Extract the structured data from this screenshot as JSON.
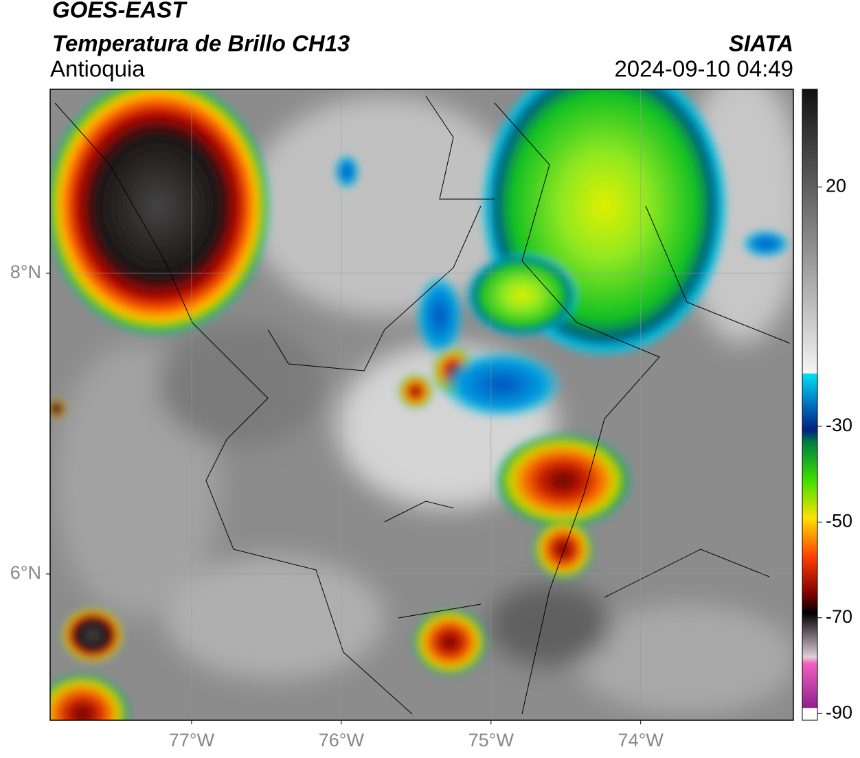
{
  "header": {
    "satellite": "GOES-EAST",
    "product": "Temperatura de Brillo CH13",
    "region": "Antioquia",
    "source": "SIATA",
    "datetime": "2024-09-10 04:49"
  },
  "map": {
    "lonlim": [
      -77.945,
      -72.98
    ],
    "latlim": [
      5.027,
      9.224
    ],
    "lon_ticks": [
      {
        "value": -77,
        "label": "77°W"
      },
      {
        "value": -76,
        "label": "76°W"
      },
      {
        "value": -75,
        "label": "75°W"
      },
      {
        "value": -74,
        "label": "74°W"
      }
    ],
    "lat_ticks": [
      {
        "value": 8,
        "label": "8°N"
      },
      {
        "value": 6,
        "label": "6°N"
      }
    ],
    "grid": true
  },
  "colorbar": {
    "lim": [
      -91.4,
      40.4
    ],
    "ticks": [
      20,
      -30,
      -50,
      -70,
      -90
    ]
  }
}
